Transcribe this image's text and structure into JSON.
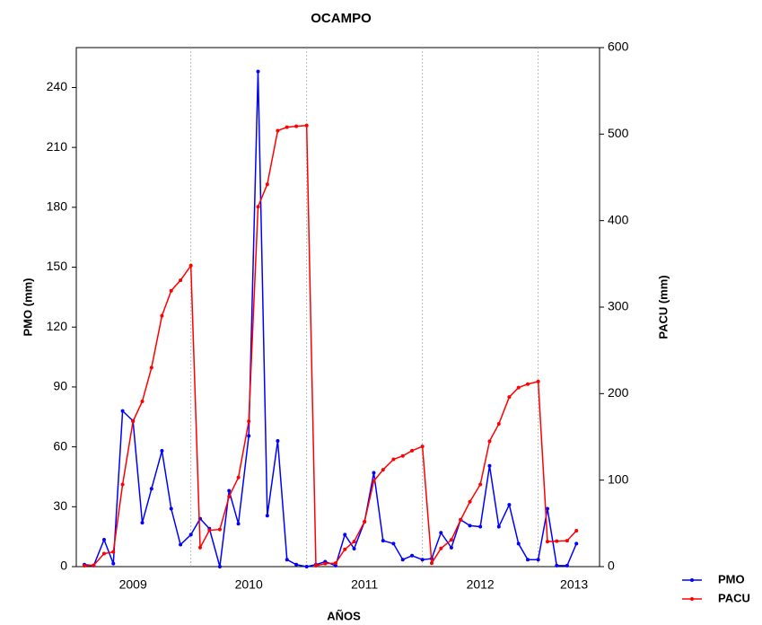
{
  "chart_data": {
    "type": "line",
    "title": "OCAMPO",
    "xlabel": "AÑOS",
    "ylabel": "PMO (mm)",
    "y2label": "PACU (mm)",
    "x": [
      2009.0,
      2009.08,
      2009.17,
      2009.25,
      2009.33,
      2009.42,
      2009.5,
      2009.58,
      2009.67,
      2009.75,
      2009.83,
      2009.92,
      2010.0,
      2010.08,
      2010.17,
      2010.25,
      2010.33,
      2010.42,
      2010.5,
      2010.58,
      2010.67,
      2010.75,
      2010.83,
      2010.92,
      2011.0,
      2011.08,
      2011.17,
      2011.25,
      2011.33,
      2011.42,
      2011.5,
      2011.58,
      2011.67,
      2011.75,
      2011.83,
      2011.92,
      2012.0,
      2012.08,
      2012.17,
      2012.25,
      2012.33,
      2012.42,
      2012.5,
      2012.58,
      2012.67,
      2012.75,
      2012.83,
      2012.92,
      2013.0,
      2013.08,
      2013.17,
      2013.25
    ],
    "xlim": [
      2008.93,
      2013.45
    ],
    "xticks": [
      {
        "value": 2009.42,
        "label": "2009"
      },
      {
        "value": 2010.42,
        "label": "2010"
      },
      {
        "value": 2011.42,
        "label": "2011"
      },
      {
        "value": 2012.42,
        "label": "2012"
      },
      {
        "value": 2013.23,
        "label": "2013"
      }
    ],
    "xgrid": [
      2009.92,
      2010.92,
      2011.92,
      2012.92
    ],
    "ylim": [
      0,
      260
    ],
    "yticks": [
      0,
      30,
      60,
      90,
      120,
      150,
      180,
      210,
      240
    ],
    "y2lim": [
      0,
      600
    ],
    "y2ticks": [
      0,
      100,
      200,
      300,
      400,
      500,
      600
    ],
    "legend": "bottom-right",
    "series": [
      {
        "name": "PMO",
        "color": "#0000ff",
        "values": [
          1,
          0.5,
          13.5,
          1.5,
          78,
          73,
          22,
          39,
          58,
          29,
          11,
          16,
          24,
          19,
          0,
          38,
          21.5,
          65.5,
          248,
          25.5,
          63,
          3.5,
          1,
          0,
          1,
          2.5,
          0.5,
          16,
          9,
          22.5,
          47,
          13,
          11.5,
          3.5,
          5.5,
          3.5,
          4,
          17,
          9.5,
          23.5,
          20.5,
          20,
          50.5,
          20,
          31,
          11.5,
          3.5,
          3.5,
          29,
          0.5,
          0.5,
          11.5
        ]
      },
      {
        "name": "PACU",
        "color": "#ff0000",
        "axis": "y2",
        "values": [
          1,
          1.5,
          15,
          17,
          95,
          168,
          191,
          230,
          290,
          319,
          331,
          348,
          22,
          42,
          43,
          81,
          103,
          168,
          416,
          442,
          504,
          508,
          509,
          510,
          1,
          3.5,
          4,
          20,
          29,
          52,
          99,
          112,
          124,
          128,
          134,
          139,
          4,
          21,
          31,
          54,
          75,
          95,
          145,
          165,
          196,
          207,
          211,
          214,
          29,
          29.5,
          30,
          41.5
        ]
      }
    ]
  }
}
